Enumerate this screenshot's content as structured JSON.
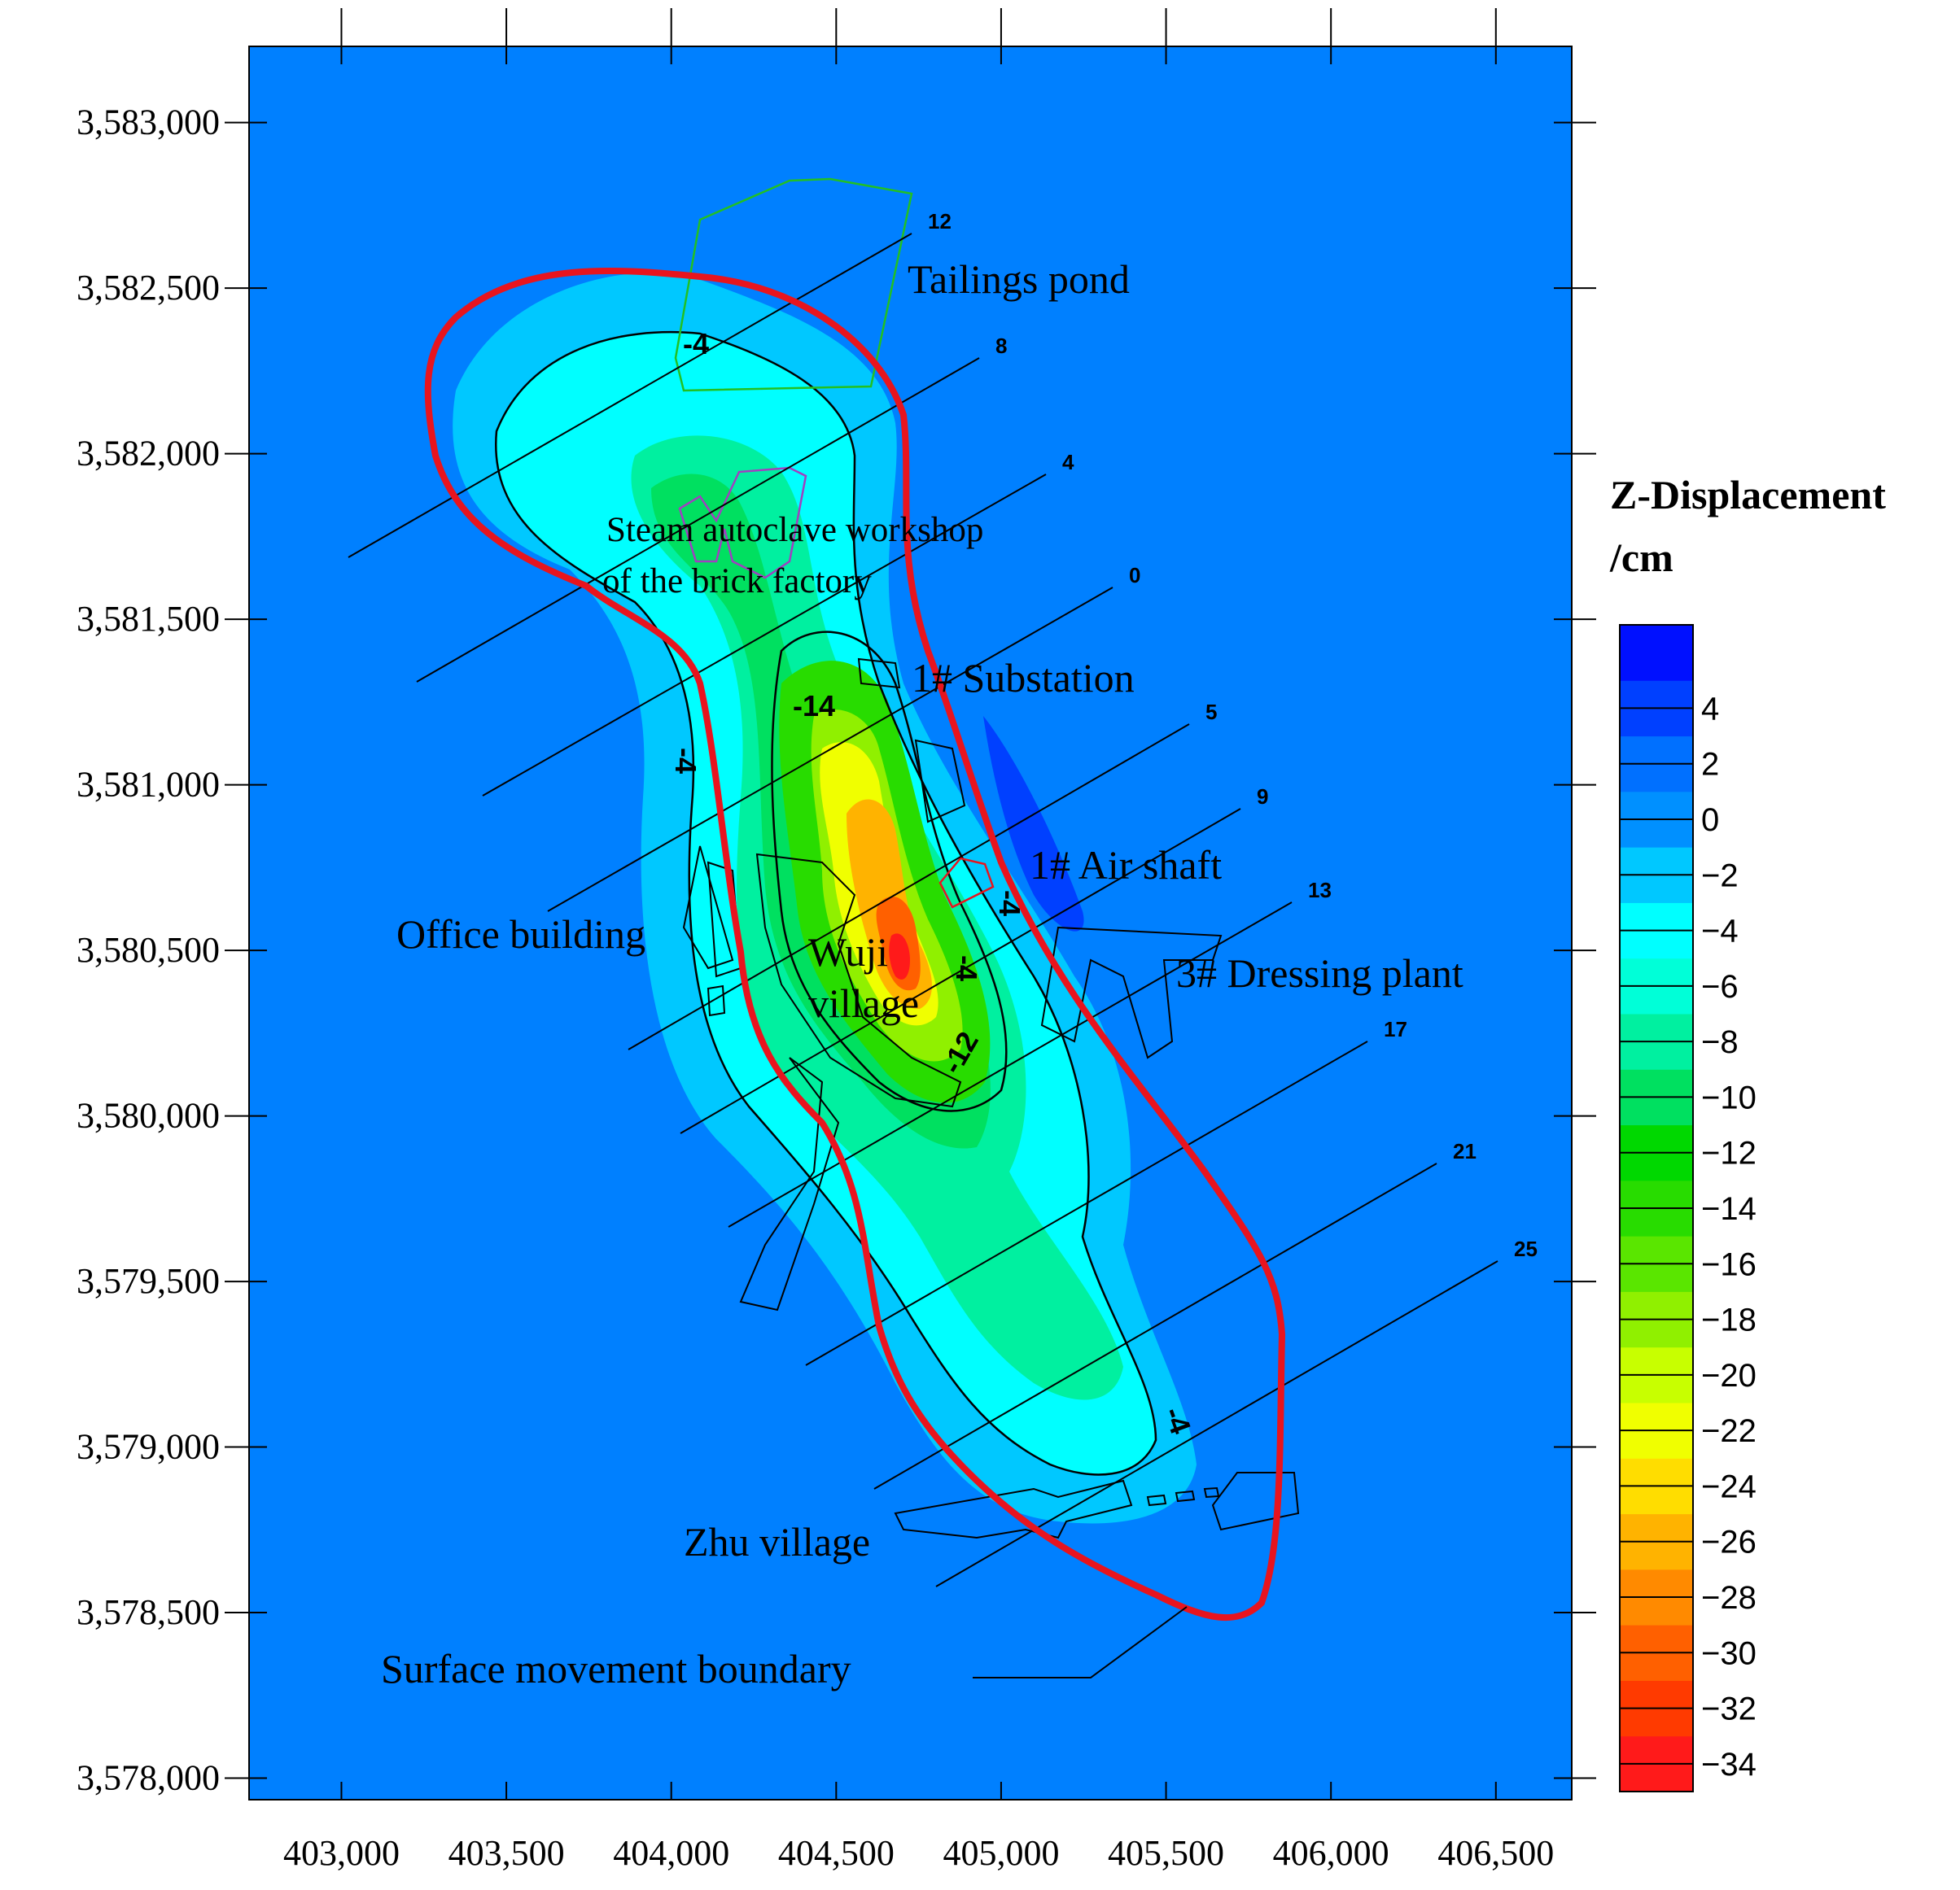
{
  "chart_data": {
    "type": "contour",
    "x_axis": {
      "ticks": [
        403000,
        403500,
        404000,
        404500,
        405000,
        405500,
        406000,
        406500
      ],
      "tick_labels": [
        "403,000",
        "403,500",
        "404,000",
        "404,500",
        "405,000",
        "405,500",
        "406,000",
        "406,500"
      ],
      "range": [
        402720,
        406730
      ]
    },
    "y_axis": {
      "ticks": [
        3578000,
        3578500,
        3579000,
        3579500,
        3580000,
        3580500,
        3581000,
        3581500,
        3582000,
        3582500,
        3583000
      ],
      "tick_labels": [
        "3,578,000",
        "3,578,500",
        "3,579,000",
        "3,579,500",
        "3,580,000",
        "3,580,500",
        "3,581,000",
        "3,581,500",
        "3,582,000",
        "3,582,500",
        "3,583,000"
      ],
      "range": [
        3577935,
        3583230
      ]
    },
    "colorbar": {
      "title_line1": "Z-Displacement",
      "title_line2": "/cm",
      "levels": [
        -34,
        -32,
        -30,
        -28,
        -26,
        -24,
        -22,
        -20,
        -18,
        -16,
        -14,
        -12,
        -10,
        -8,
        -6,
        -4,
        -2,
        0,
        2,
        4
      ],
      "level_labels": [
        "−34",
        "−32",
        "−30",
        "−28",
        "−26",
        "−24",
        "−22",
        "−20",
        "−18",
        "−16",
        "−14",
        "−12",
        "−10",
        "−8",
        "−6",
        "−4",
        "−2",
        "0",
        "2",
        "4"
      ],
      "colors": [
        "#ff1a1a",
        "#ff3a00",
        "#ff6000",
        "#ff8a00",
        "#ffb300",
        "#ffdd00",
        "#f0ff00",
        "#c8ff00",
        "#90f000",
        "#5ae600",
        "#28dc00",
        "#00d800",
        "#00e060",
        "#00f0a0",
        "#00ffd8",
        "#00ffff",
        "#00c8ff",
        "#0090ff",
        "#0070ff",
        "#0040ff",
        "#0010ff"
      ]
    },
    "background_color": "#0080ff",
    "boundary_color": "#e8141e",
    "contour_labels": [
      "-4",
      "-4",
      "-4",
      "-4",
      "-4",
      "-12",
      "-14"
    ],
    "profile_lines": [
      "12",
      "8",
      "4",
      "0",
      "5",
      "9",
      "13",
      "17",
      "21",
      "25"
    ],
    "annotations": {
      "tailings_pond": "Tailings pond",
      "steam_line1": "Steam autoclave workshop",
      "steam_line2": "of the brick factory",
      "substation": "1# Substation",
      "office": "Office building",
      "air_shaft": "1# Air shaft",
      "wuji_line1": "Wuji",
      "wuji_line2": "village",
      "dressing": "3# Dressing plant",
      "zhu": "Zhu village",
      "boundary": "Surface movement boundary"
    }
  }
}
